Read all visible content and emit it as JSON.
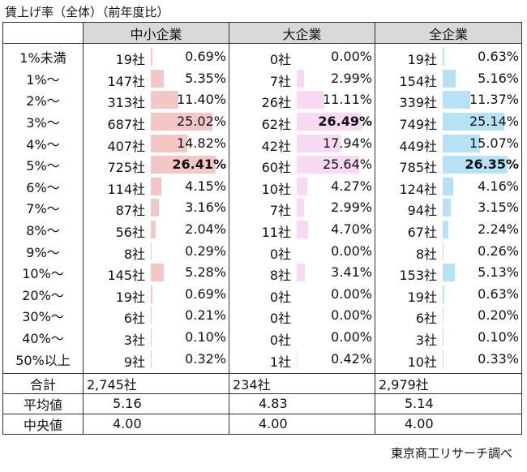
{
  "title": "賃上げ率（全体）（前年度比）",
  "source": "東京商工リサーチ調べ",
  "colors": {
    "small": "#f4c7c7",
    "large": "#f7d9f4",
    "all": "#b7e1f5",
    "header": "#d9d9d9"
  },
  "headers": [
    "中小企業",
    "大企業",
    "全企業"
  ],
  "rows": [
    {
      "label": "1%未満",
      "small": {
        "count": "19社",
        "pct": "0.69%",
        "value": 0.69
      },
      "large": {
        "count": "0社",
        "pct": "0.00%",
        "value": 0.0
      },
      "all": {
        "count": "19社",
        "pct": "0.63%",
        "value": 0.63
      }
    },
    {
      "label": "1%～",
      "small": {
        "count": "147社",
        "pct": "5.35%",
        "value": 5.35
      },
      "large": {
        "count": "7社",
        "pct": "2.99%",
        "value": 2.99
      },
      "all": {
        "count": "154社",
        "pct": "5.16%",
        "value": 5.16
      }
    },
    {
      "label": "2%～",
      "small": {
        "count": "313社",
        "pct": "11.40%",
        "value": 11.4
      },
      "large": {
        "count": "26社",
        "pct": "11.11%",
        "value": 11.11
      },
      "all": {
        "count": "339社",
        "pct": "11.37%",
        "value": 11.37
      }
    },
    {
      "label": "3%～",
      "small": {
        "count": "687社",
        "pct": "25.02%",
        "value": 25.02
      },
      "large": {
        "count": "62社",
        "pct": "26.49%",
        "value": 26.49,
        "bold": true
      },
      "all": {
        "count": "749社",
        "pct": "25.14%",
        "value": 25.14
      }
    },
    {
      "label": "4%～",
      "small": {
        "count": "407社",
        "pct": "14.82%",
        "value": 14.82
      },
      "large": {
        "count": "42社",
        "pct": "17.94%",
        "value": 17.94
      },
      "all": {
        "count": "449社",
        "pct": "15.07%",
        "value": 15.07
      }
    },
    {
      "label": "5%～",
      "small": {
        "count": "725社",
        "pct": "26.41%",
        "value": 26.41,
        "bold": true
      },
      "large": {
        "count": "60社",
        "pct": "25.64%",
        "value": 25.64
      },
      "all": {
        "count": "785社",
        "pct": "26.35%",
        "value": 26.35,
        "bold": true
      }
    },
    {
      "label": "6%～",
      "small": {
        "count": "114社",
        "pct": "4.15%",
        "value": 4.15
      },
      "large": {
        "count": "10社",
        "pct": "4.27%",
        "value": 4.27
      },
      "all": {
        "count": "124社",
        "pct": "4.16%",
        "value": 4.16
      }
    },
    {
      "label": "7%～",
      "small": {
        "count": "87社",
        "pct": "3.16%",
        "value": 3.16
      },
      "large": {
        "count": "7社",
        "pct": "2.99%",
        "value": 2.99
      },
      "all": {
        "count": "94社",
        "pct": "3.15%",
        "value": 3.15
      }
    },
    {
      "label": "8%～",
      "small": {
        "count": "56社",
        "pct": "2.04%",
        "value": 2.04
      },
      "large": {
        "count": "11社",
        "pct": "4.70%",
        "value": 4.7
      },
      "all": {
        "count": "67社",
        "pct": "2.24%",
        "value": 2.24
      }
    },
    {
      "label": "9%～",
      "small": {
        "count": "8社",
        "pct": "0.29%",
        "value": 0.29
      },
      "large": {
        "count": "0社",
        "pct": "0.00%",
        "value": 0.0
      },
      "all": {
        "count": "8社",
        "pct": "0.26%",
        "value": 0.26
      }
    },
    {
      "label": "10%～",
      "small": {
        "count": "145社",
        "pct": "5.28%",
        "value": 5.28
      },
      "large": {
        "count": "8社",
        "pct": "3.41%",
        "value": 3.41
      },
      "all": {
        "count": "153社",
        "pct": "5.13%",
        "value": 5.13
      }
    },
    {
      "label": "20%～",
      "small": {
        "count": "19社",
        "pct": "0.69%",
        "value": 0.69
      },
      "large": {
        "count": "0社",
        "pct": "0.00%",
        "value": 0.0
      },
      "all": {
        "count": "19社",
        "pct": "0.63%",
        "value": 0.63
      }
    },
    {
      "label": "30%～",
      "small": {
        "count": "6社",
        "pct": "0.21%",
        "value": 0.21
      },
      "large": {
        "count": "0社",
        "pct": "0.00%",
        "value": 0.0
      },
      "all": {
        "count": "6社",
        "pct": "0.20%",
        "value": 0.2
      }
    },
    {
      "label": "40%～",
      "small": {
        "count": "3社",
        "pct": "0.10%",
        "value": 0.1
      },
      "large": {
        "count": "0社",
        "pct": "0.00%",
        "value": 0.0
      },
      "all": {
        "count": "3社",
        "pct": "0.10%",
        "value": 0.1
      }
    },
    {
      "label": "50%以上",
      "small": {
        "count": "9社",
        "pct": "0.32%",
        "value": 0.32
      },
      "large": {
        "count": "1社",
        "pct": "0.42%",
        "value": 0.42
      },
      "all": {
        "count": "10社",
        "pct": "0.33%",
        "value": 0.33
      }
    }
  ],
  "summary": [
    {
      "label": "合計",
      "small": "2,745社",
      "large": "234社",
      "all": "2,979社"
    },
    {
      "label": "平均値",
      "small": "5.16",
      "large": "4.83",
      "all": "5.14"
    },
    {
      "label": "中央値",
      "small": "4.00",
      "large": "4.00",
      "all": "4.00"
    }
  ]
}
